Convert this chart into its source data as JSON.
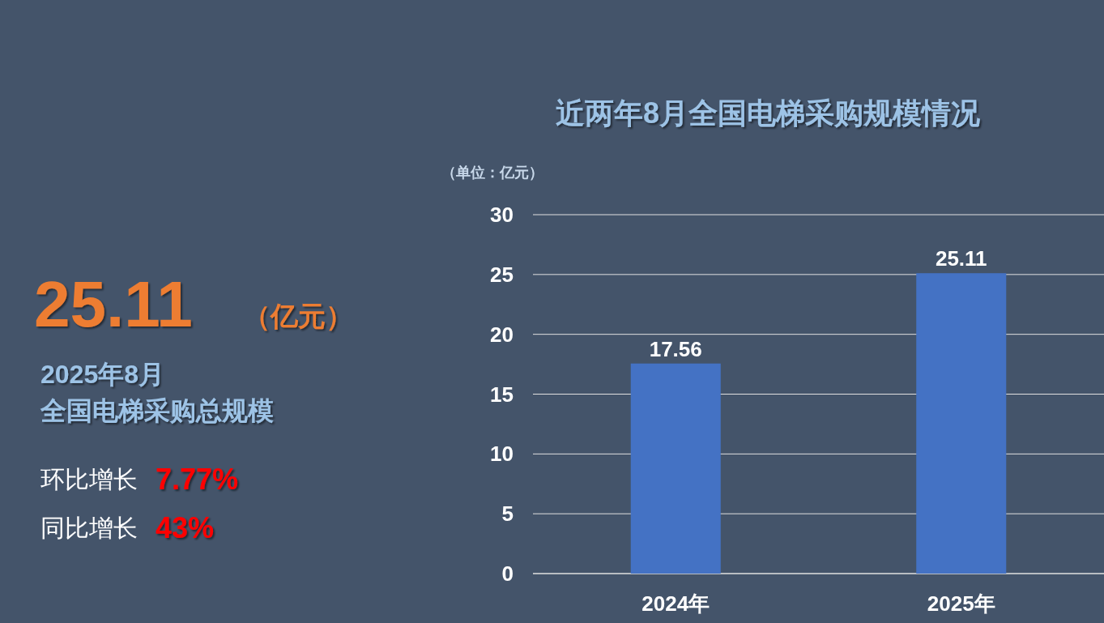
{
  "chart_data": [
    {
      "type": "other",
      "annotations": [
        "25.11",
        "（亿元）",
        "2025年8月",
        "全国电梯采购总规模",
        "环比增长",
        "7.77%",
        "同比增长",
        "43%"
      ]
    },
    {
      "type": "bar",
      "title": "近两年8月全国电梯采购规模情况",
      "ylabel": "（单位：亿元）",
      "categories": [
        "2024年",
        "2025年"
      ],
      "values": [
        17.56,
        25.11
      ],
      "color": "#4472c4",
      "ylim": [
        0,
        30
      ],
      "yticks": [
        0,
        5,
        10,
        15,
        20,
        25,
        30
      ],
      "grid": "y",
      "data_labels": true
    }
  ]
}
